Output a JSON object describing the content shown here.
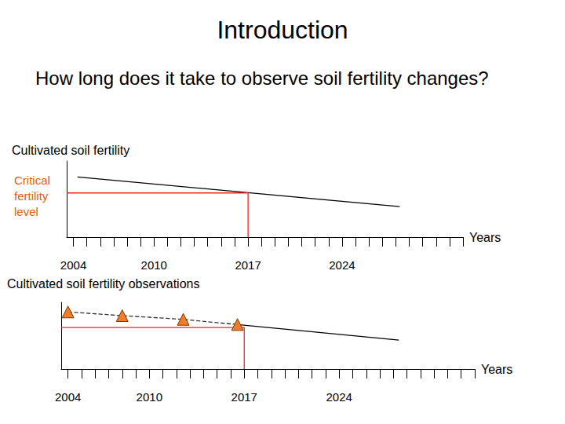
{
  "slide": {
    "title": "Introduction",
    "question": "How long does it take to observe soil fertility changes?"
  },
  "chart_data": [
    {
      "type": "line",
      "ylabel": "Cultivated soil fertility",
      "xlabel": "Years",
      "xlim": [
        2003.5,
        2033
      ],
      "ylim": [
        0,
        10
      ],
      "xticks": [
        2004,
        2010,
        2017,
        2024
      ],
      "yticks": [],
      "tick_labels": "x",
      "grid": false,
      "series": [
        {
          "color": "#000000",
          "x": [
            2004.3,
            2028.3
          ],
          "values": [
            7.9,
            4.0
          ],
          "marker": "none",
          "line_style": "solid"
        },
        {
          "name": "Critical fertility level",
          "color": "#ff2020",
          "x": [
            2003.5,
            2017,
            2017
          ],
          "values": [
            5.8,
            5.8,
            0
          ],
          "marker": "none",
          "line_style": "solid"
        }
      ]
    },
    {
      "type": "line",
      "title": "Cultivated soil fertility observations",
      "xlabel": "Years",
      "xlim": [
        2003.5,
        2034
      ],
      "ylim": [
        0,
        9
      ],
      "xticks": [
        2004,
        2010,
        2017,
        2024
      ],
      "yticks": [],
      "tick_labels": "x",
      "grid": false,
      "series": [
        {
          "color": "#f07d2b",
          "x": [
            2004,
            2008,
            2012.5,
            2016.5
          ],
          "values": [
            7.7,
            7.2,
            6.7,
            6.0
          ],
          "marker": "triangle",
          "line_style": "dashed"
        },
        {
          "color": "#000000",
          "x": [
            2016.5,
            2028.4
          ],
          "values": [
            6.0,
            3.9
          ],
          "marker": "none",
          "line_style": "solid"
        },
        {
          "color": "#ff2020",
          "x": [
            2003.5,
            2017,
            2017
          ],
          "values": [
            5.6,
            5.6,
            0
          ],
          "marker": "none",
          "line_style": "solid"
        }
      ]
    }
  ]
}
